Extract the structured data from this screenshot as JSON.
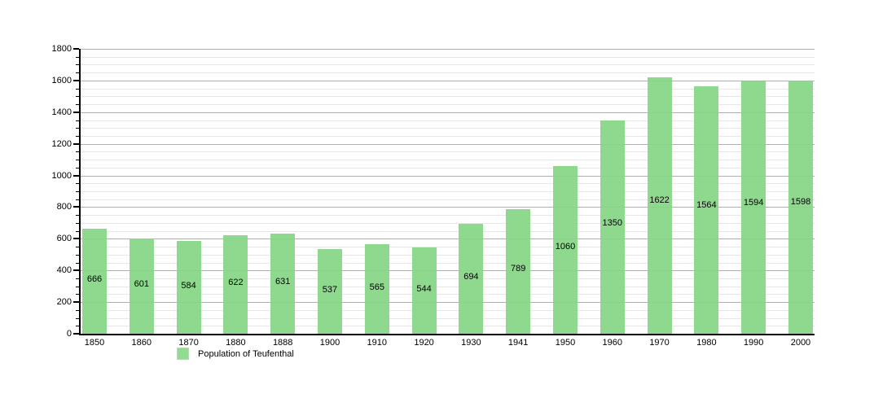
{
  "chart_data": {
    "type": "bar",
    "title": "",
    "xlabel": "",
    "ylabel": "",
    "categories": [
      "1850",
      "1860",
      "1870",
      "1880",
      "1888",
      "1900",
      "1910",
      "1920",
      "1930",
      "1941",
      "1950",
      "1960",
      "1970",
      "1980",
      "1990",
      "2000"
    ],
    "values": [
      666,
      601,
      584,
      622,
      631,
      537,
      565,
      544,
      694,
      789,
      1060,
      1350,
      1622,
      1564,
      1594,
      1598
    ],
    "value_labels_shown": true,
    "ylim": [
      0,
      1800
    ],
    "y_major_step": 200,
    "y_minor_step": 50,
    "y_tick_labels": [
      "0",
      "200",
      "400",
      "600",
      "800",
      "1000",
      "1200",
      "1400",
      "1600",
      "1800"
    ],
    "grid": true,
    "legend": {
      "label": "Population of Teufenthal",
      "position": "bottom-left"
    },
    "colors": {
      "bar": "#92dc92",
      "axis": "#000000",
      "major_grid": "#b0b0b0",
      "minor_grid": "#e7e7e7",
      "background": "#ffffff",
      "text": "#000000"
    }
  }
}
